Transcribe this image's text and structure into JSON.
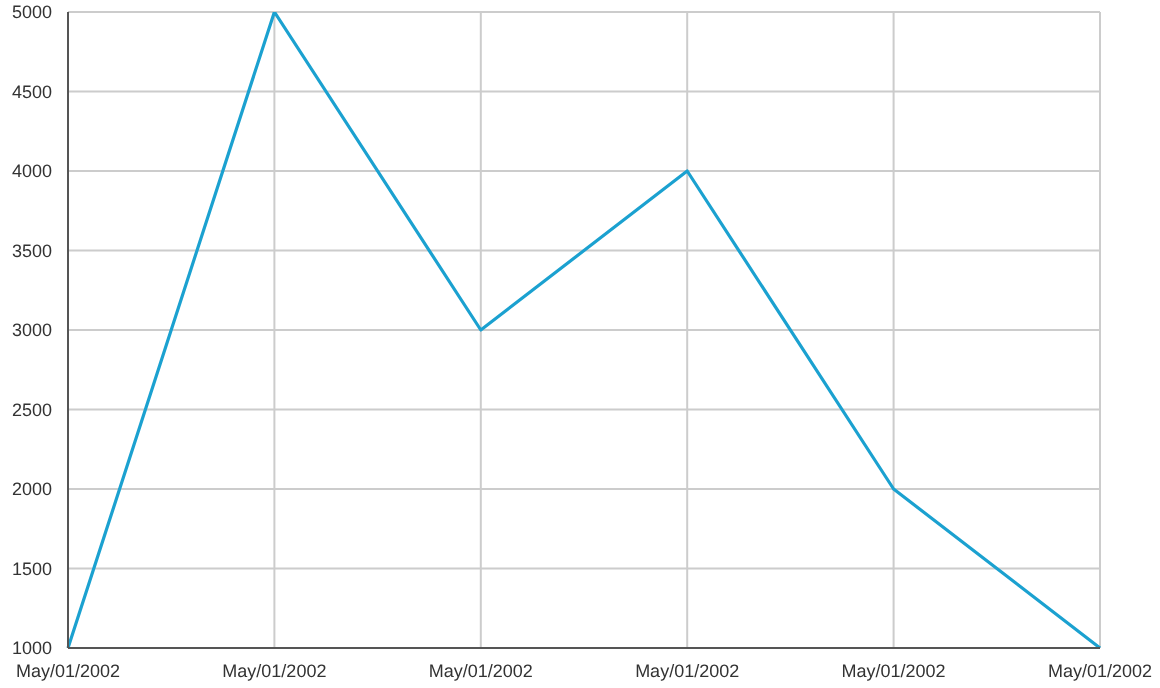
{
  "chart_data": {
    "type": "line",
    "categories": [
      "May/01/2002",
      "May/01/2002",
      "May/01/2002",
      "May/01/2002",
      "May/01/2002",
      "May/01/2002"
    ],
    "series": [
      {
        "color": "#1ba1d0",
        "values": [
          1000,
          5000,
          3000,
          4000,
          2000,
          1000
        ]
      }
    ],
    "ylim": [
      1000,
      5000
    ],
    "yticks": [
      1000,
      1500,
      2000,
      2500,
      3000,
      3500,
      4000,
      4500,
      5000
    ],
    "grid": true,
    "marker": "none",
    "line_style": "solid",
    "legend": false
  }
}
